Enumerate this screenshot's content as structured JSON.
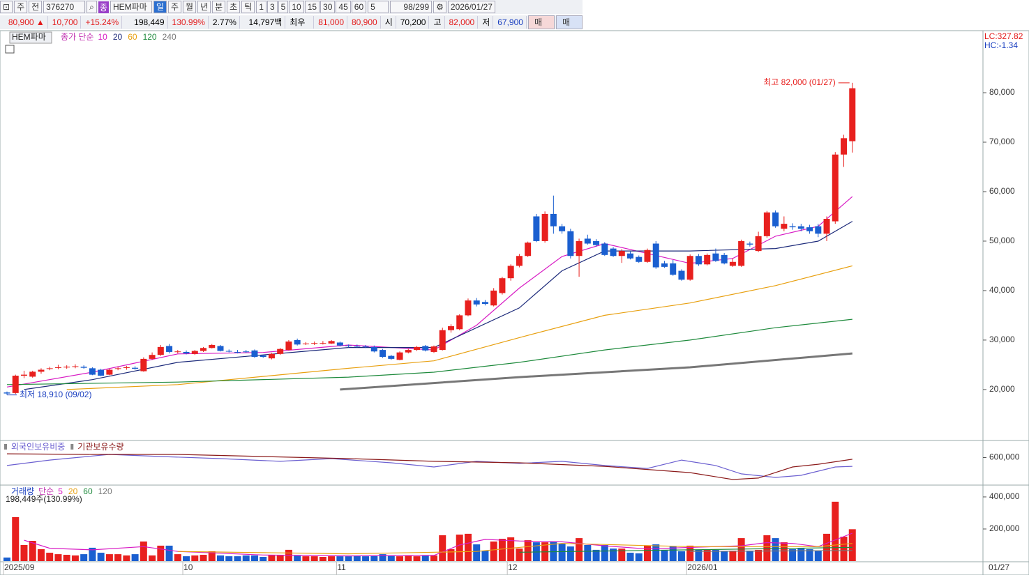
{
  "toolbar": {
    "market": "주",
    "scope": "전",
    "code": "376270",
    "badge": "종",
    "name": "HEM파마",
    "periods": [
      "일",
      "주",
      "월",
      "년",
      "분",
      "초",
      "틱"
    ],
    "intervals": [
      "1",
      "3",
      "5",
      "10",
      "15",
      "30",
      "45",
      "60"
    ],
    "count": "5",
    "range": "98/299",
    "date": "2026/01/27"
  },
  "quote": {
    "price": "80,900",
    "arrow": "▲",
    "change": "10,700",
    "change_rate": "+15.24%",
    "volume": "198,449",
    "volume_rate": "130.99%",
    "turnover": "2.77%",
    "amount": "14,797백만",
    "best_label": "최우선",
    "ask": "81,000",
    "bid": "80,900",
    "open_label": "시",
    "open": "70,200",
    "high_label": "고",
    "high": "82,000",
    "low_label": "저",
    "low": "67,900",
    "buy": "매수",
    "sell": "매도"
  },
  "chart_data": [
    {
      "type": "candlestick",
      "title": "HEM파마",
      "ma_label": "종가 단순",
      "lc": "LC:327.82",
      "hc": "HC:-1.34",
      "up_color": "#e8201e",
      "down_color": "#1a5fd0",
      "categories": [
        "2025/09",
        null,
        null,
        null,
        null,
        null,
        null,
        null,
        null,
        null,
        null,
        null,
        null,
        null,
        null,
        null,
        null,
        null,
        null,
        null,
        null,
        "10",
        null,
        null,
        null,
        null,
        null,
        null,
        null,
        null,
        null,
        null,
        null,
        null,
        null,
        null,
        null,
        null,
        null,
        "11",
        null,
        null,
        null,
        null,
        null,
        null,
        null,
        null,
        null,
        null,
        null,
        null,
        null,
        null,
        null,
        null,
        null,
        null,
        null,
        "12",
        null,
        null,
        null,
        null,
        null,
        null,
        null,
        null,
        null,
        null,
        null,
        null,
        null,
        null,
        null,
        null,
        null,
        null,
        null,
        null,
        "2026/01",
        null,
        null,
        null,
        null,
        null,
        null,
        null,
        null,
        null,
        null,
        null,
        null,
        null,
        null,
        null,
        null,
        null,
        null,
        null
      ],
      "open": [
        19400,
        19300,
        22800,
        22600,
        23600,
        24200,
        24400,
        24500,
        24600,
        24600,
        24300,
        24000,
        23000,
        24200,
        24400,
        24400,
        23700,
        26200,
        27000,
        28800,
        27700,
        27600,
        27200,
        27800,
        28400,
        28800,
        27800,
        27600,
        27700,
        27900,
        26900,
        26300,
        27200,
        28000,
        30000,
        29300,
        29300,
        29400,
        29300,
        29500,
        28900,
        28800,
        28700,
        28600,
        28000,
        26800,
        26000,
        27500,
        28000,
        28800,
        27600,
        28000,
        32000,
        32200,
        35000,
        38000,
        37700,
        37000,
        39500,
        42500,
        45000,
        47000,
        55000,
        50000,
        55500,
        53000,
        52000,
        47000,
        50500,
        50000,
        49500,
        48500,
        47000,
        47500,
        46800,
        45800,
        49500,
        45500,
        45500,
        44000,
        42200,
        47000,
        45300,
        47500,
        47200,
        45000,
        45000,
        49500,
        48000,
        51000,
        55800,
        52500,
        53000,
        53000,
        52800,
        53000,
        51500,
        54000,
        67500,
        70200
      ],
      "high": [
        19600,
        23000,
        23800,
        23800,
        24300,
        24600,
        25000,
        24900,
        25100,
        24900,
        24500,
        24200,
        24200,
        24600,
        24800,
        24700,
        26500,
        27500,
        29000,
        29200,
        28000,
        27900,
        28000,
        28600,
        29200,
        29000,
        28100,
        28000,
        28000,
        28100,
        27000,
        27400,
        28400,
        30000,
        30300,
        29600,
        29700,
        29800,
        30000,
        29700,
        29100,
        29100,
        29000,
        28900,
        28200,
        27000,
        27700,
        28200,
        28800,
        29000,
        28900,
        32500,
        33200,
        35200,
        38400,
        38500,
        38100,
        40500,
        42800,
        45300,
        47400,
        49900,
        55500,
        56000,
        59200,
        53500,
        52500,
        50500,
        51300,
        50400,
        49800,
        48800,
        48400,
        47900,
        47100,
        48500,
        50000,
        46000,
        46200,
        44300,
        47300,
        47400,
        47500,
        48500,
        47600,
        46500,
        50300,
        49900,
        51900,
        56100,
        56200,
        55000,
        53600,
        53500,
        53300,
        53500,
        55000,
        68000,
        71500,
        82000
      ],
      "low": [
        18910,
        19100,
        22300,
        22400,
        23200,
        23900,
        24100,
        24200,
        24300,
        24200,
        22900,
        22700,
        22900,
        23900,
        24000,
        24000,
        23600,
        26000,
        26800,
        27300,
        27300,
        27100,
        27000,
        27600,
        28300,
        27700,
        27500,
        27300,
        27400,
        26400,
        26400,
        26100,
        27000,
        27900,
        28900,
        29000,
        29000,
        29100,
        29200,
        28700,
        28500,
        28500,
        28400,
        27500,
        26400,
        26000,
        25900,
        27300,
        27800,
        27700,
        27400,
        27900,
        31500,
        32000,
        34800,
        36800,
        37000,
        36800,
        39200,
        42000,
        44700,
        46800,
        49800,
        49700,
        51500,
        51500,
        46500,
        42800,
        49300,
        48900,
        47000,
        46800,
        45600,
        46300,
        45600,
        45600,
        44400,
        44600,
        43000,
        42000,
        42000,
        45000,
        45100,
        45800,
        45300,
        44800,
        44800,
        48900,
        47800,
        50700,
        52700,
        52000,
        52300,
        52000,
        51500,
        50800,
        50000,
        53500,
        65000,
        67900
      ],
      "close": [
        19200,
        22800,
        23000,
        23600,
        24000,
        24300,
        24500,
        24600,
        24700,
        24400,
        23000,
        22800,
        24000,
        24300,
        24500,
        24200,
        26200,
        27000,
        28600,
        27600,
        27700,
        27300,
        27800,
        28400,
        29000,
        27800,
        27700,
        27500,
        27600,
        26600,
        26600,
        27200,
        28200,
        29700,
        29100,
        29300,
        29400,
        29400,
        29800,
        28900,
        28800,
        28700,
        28600,
        27700,
        26600,
        26200,
        27500,
        28000,
        28600,
        27900,
        28700,
        32000,
        32800,
        35000,
        38000,
        37200,
        37300,
        40000,
        42500,
        45000,
        47000,
        49700,
        50000,
        55500,
        53000,
        52000,
        47000,
        50000,
        49500,
        49200,
        47200,
        47000,
        48000,
        46500,
        45800,
        48200,
        44700,
        44800,
        43200,
        42200,
        47000,
        45300,
        47200,
        46000,
        45500,
        45800,
        50000,
        49300,
        51000,
        55800,
        53000,
        53500,
        52800,
        52500,
        52000,
        51500,
        54500,
        67500,
        70800,
        80900
      ],
      "series": [
        {
          "name": "10",
          "color": "#d81bc4",
          "x": [
            0,
            10,
            20,
            30,
            40,
            50,
            55,
            60,
            65,
            70,
            80,
            85,
            90,
            95,
            99
          ],
          "values": [
            20500,
            23500,
            27200,
            27500,
            29000,
            28000,
            33000,
            40500,
            46900,
            49500,
            45500,
            46500,
            51000,
            53000,
            59000
          ]
        },
        {
          "name": "20",
          "color": "#1c2a7a",
          "x": [
            2,
            10,
            20,
            30,
            40,
            50,
            60,
            65,
            70,
            80,
            90,
            95,
            99
          ],
          "values": [
            20000,
            22000,
            25500,
            27000,
            28500,
            28500,
            36500,
            44000,
            48000,
            48000,
            48500,
            50000,
            54000
          ]
        },
        {
          "name": "60",
          "color": "#e8a010",
          "x": [
            7,
            20,
            40,
            50,
            60,
            70,
            80,
            90,
            99
          ],
          "values": [
            20000,
            21000,
            24300,
            25800,
            30500,
            35000,
            37500,
            41000,
            45000
          ]
        },
        {
          "name": "120",
          "color": "#1e8a3c",
          "x": [
            0,
            20,
            40,
            50,
            60,
            70,
            80,
            90,
            99
          ],
          "values": [
            21000,
            21500,
            22500,
            23500,
            25500,
            28000,
            30000,
            32500,
            34200
          ]
        },
        {
          "name": "240",
          "color": "#777777",
          "x": [
            39,
            60,
            80,
            99
          ],
          "values": [
            20000,
            22500,
            24500,
            27300
          ]
        }
      ],
      "annotations": [
        {
          "text": "최고 82,000 (01/27)",
          "x": 99,
          "y": 82000,
          "color": "#e8201e"
        },
        {
          "text": "최저 18,910 (09/02)",
          "x": 0,
          "y": 18910,
          "color": "#1a3fc0"
        }
      ],
      "ylim": [
        9700,
        92400
      ],
      "yticks": [
        {
          "value": 20000,
          "label": "20,000"
        },
        {
          "value": 30000,
          "label": "30,000"
        },
        {
          "value": 40000,
          "label": "40,000"
        },
        {
          "value": 50000,
          "label": "50,000"
        },
        {
          "value": 60000,
          "label": "60,000"
        },
        {
          "value": 70000,
          "label": "70,000"
        },
        {
          "value": 80000,
          "label": "80,000"
        }
      ]
    },
    {
      "type": "line",
      "series": [
        {
          "name": "외국인보유비중",
          "color": "#6b5fd0",
          "x": [
            0,
            5,
            12,
            18,
            25,
            32,
            38,
            45,
            50,
            55,
            60,
            65,
            70,
            75,
            79,
            83,
            86,
            90,
            93,
            97,
            99
          ],
          "values": [
            539000,
            581000,
            624000,
            608000,
            592000,
            571000,
            592000,
            560000,
            528000,
            571000,
            555000,
            571000,
            539000,
            517000,
            581000,
            539000,
            475000,
            448000,
            464000,
            528000,
            533000
          ]
        },
        {
          "name": "기관보유수량",
          "color": "#8b1a1a",
          "x": [
            0,
            10,
            20,
            30,
            40,
            50,
            60,
            70,
            80,
            85,
            88,
            92,
            95,
            99
          ],
          "values": [
            629000,
            624000,
            624000,
            608000,
            592000,
            571000,
            560000,
            533000,
            485000,
            432000,
            443000,
            528000,
            549000,
            587000
          ]
        }
      ],
      "ylim": [
        400000,
        720000
      ],
      "yticks": [
        {
          "value": 600000,
          "label": "600,000"
        }
      ]
    },
    {
      "type": "bar",
      "title": "거래량",
      "ma_label": "단순",
      "value_label": "198,449주(130.99%)",
      "x_end_label": "01/27",
      "values": [
        22000,
        274000,
        100000,
        126000,
        74000,
        52000,
        43000,
        39000,
        35000,
        43000,
        83000,
        52000,
        43000,
        43000,
        35000,
        43000,
        122000,
        35000,
        96000,
        96000,
        43000,
        30000,
        35000,
        39000,
        61000,
        35000,
        30000,
        30000,
        35000,
        35000,
        26000,
        35000,
        35000,
        70000,
        35000,
        30000,
        30000,
        26000,
        30000,
        30000,
        30000,
        35000,
        30000,
        35000,
        43000,
        35000,
        30000,
        35000,
        30000,
        35000,
        35000,
        161000,
        74000,
        165000,
        170000,
        104000,
        65000,
        122000,
        139000,
        148000,
        78000,
        130000,
        117000,
        117000,
        122000,
        109000,
        91000,
        143000,
        100000,
        70000,
        100000,
        78000,
        78000,
        52000,
        48000,
        96000,
        104000,
        65000,
        91000,
        61000,
        96000,
        70000,
        70000,
        70000,
        61000,
        65000,
        143000,
        65000,
        70000,
        161000,
        143000,
        117000,
        74000,
        78000,
        74000,
        65000,
        170000,
        370000,
        152000,
        198449
      ],
      "series": [
        {
          "name": "5",
          "color": "#d81bc4",
          "x": [
            2,
            5,
            10,
            16,
            20,
            30,
            40,
            50,
            53,
            56,
            60,
            65,
            70,
            75,
            80,
            86,
            89,
            92,
            95,
            99
          ],
          "values": [
            130000,
            80000,
            70000,
            90000,
            60000,
            38000,
            32000,
            35000,
            100000,
            135000,
            125000,
            120000,
            95000,
            75000,
            85000,
            95000,
            115000,
            110000,
            90000,
            174000
          ]
        },
        {
          "name": "20",
          "color": "#e8a010",
          "x": [
            20,
            40,
            55,
            65,
            80,
            95,
            99
          ],
          "values": [
            60000,
            45000,
            60000,
            110000,
            90000,
            90000,
            110000
          ]
        },
        {
          "name": "60",
          "color": "#1e8a3c",
          "x": [
            60,
            80,
            99
          ],
          "values": [
            55000,
            70000,
            85000
          ]
        },
        {
          "name": "120",
          "color": "#777777",
          "x": [
            80,
            99
          ],
          "values": [
            60000,
            65000
          ]
        }
      ],
      "ylim": [
        0,
        465000
      ],
      "yticks": [
        {
          "value": 200000,
          "label": "200,000"
        },
        {
          "value": 400000,
          "label": "400,000"
        }
      ]
    }
  ]
}
